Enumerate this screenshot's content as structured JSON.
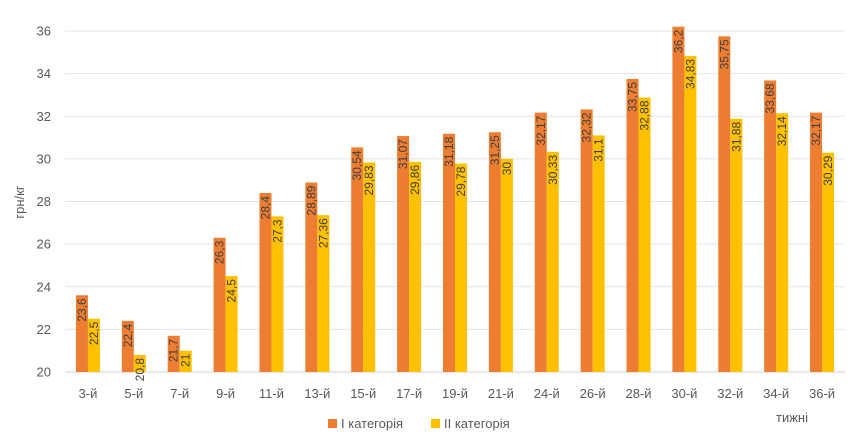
{
  "chart_data": {
    "type": "bar",
    "categories": [
      "3-й",
      "5-й",
      "7-й",
      "9-й",
      "11-й",
      "13-й",
      "15-й",
      "17-й",
      "19-й",
      "21-й",
      "24-й",
      "26-й",
      "28-й",
      "30-й",
      "32-й",
      "34-й",
      "36-й"
    ],
    "series": [
      {
        "name": "І категорія",
        "values": [
          23.6,
          22.4,
          21.7,
          26.3,
          28.4,
          28.89,
          30.54,
          31.07,
          31.18,
          31.25,
          32.17,
          32.32,
          33.75,
          36.2,
          35.75,
          33.68,
          32.17
        ],
        "labels": [
          "23,6",
          "22,4",
          "21,7",
          "26,3",
          "28,4",
          "28,89",
          "30,54",
          "31,07",
          "31,18",
          "31,25",
          "32,17",
          "32,32",
          "33,75",
          "36,2",
          "35,75",
          "33,68",
          "32,17"
        ],
        "color": "#ED7D31"
      },
      {
        "name": "ІІ категорія",
        "values": [
          22.5,
          20.8,
          21,
          24.5,
          27.3,
          27.36,
          29.83,
          29.86,
          29.78,
          30,
          30.33,
          31.1,
          32.88,
          34.83,
          31.88,
          32.14,
          30.29
        ],
        "labels": [
          "22,5",
          "20,8",
          "21",
          "24,5",
          "27,3",
          "27,36",
          "29,83",
          "29,86",
          "29,78",
          "30",
          "30,33",
          "31,1",
          "32,88",
          "34,83",
          "31,88",
          "32,14",
          "30,29"
        ],
        "color": "#FFC000"
      }
    ],
    "ylabel": "грн/кг",
    "xlabel": "тижні",
    "ylim": [
      20,
      36
    ],
    "yticks": [
      20,
      22,
      24,
      26,
      28,
      30,
      32,
      34,
      36
    ],
    "grid": true,
    "legend": "bottom-center"
  }
}
